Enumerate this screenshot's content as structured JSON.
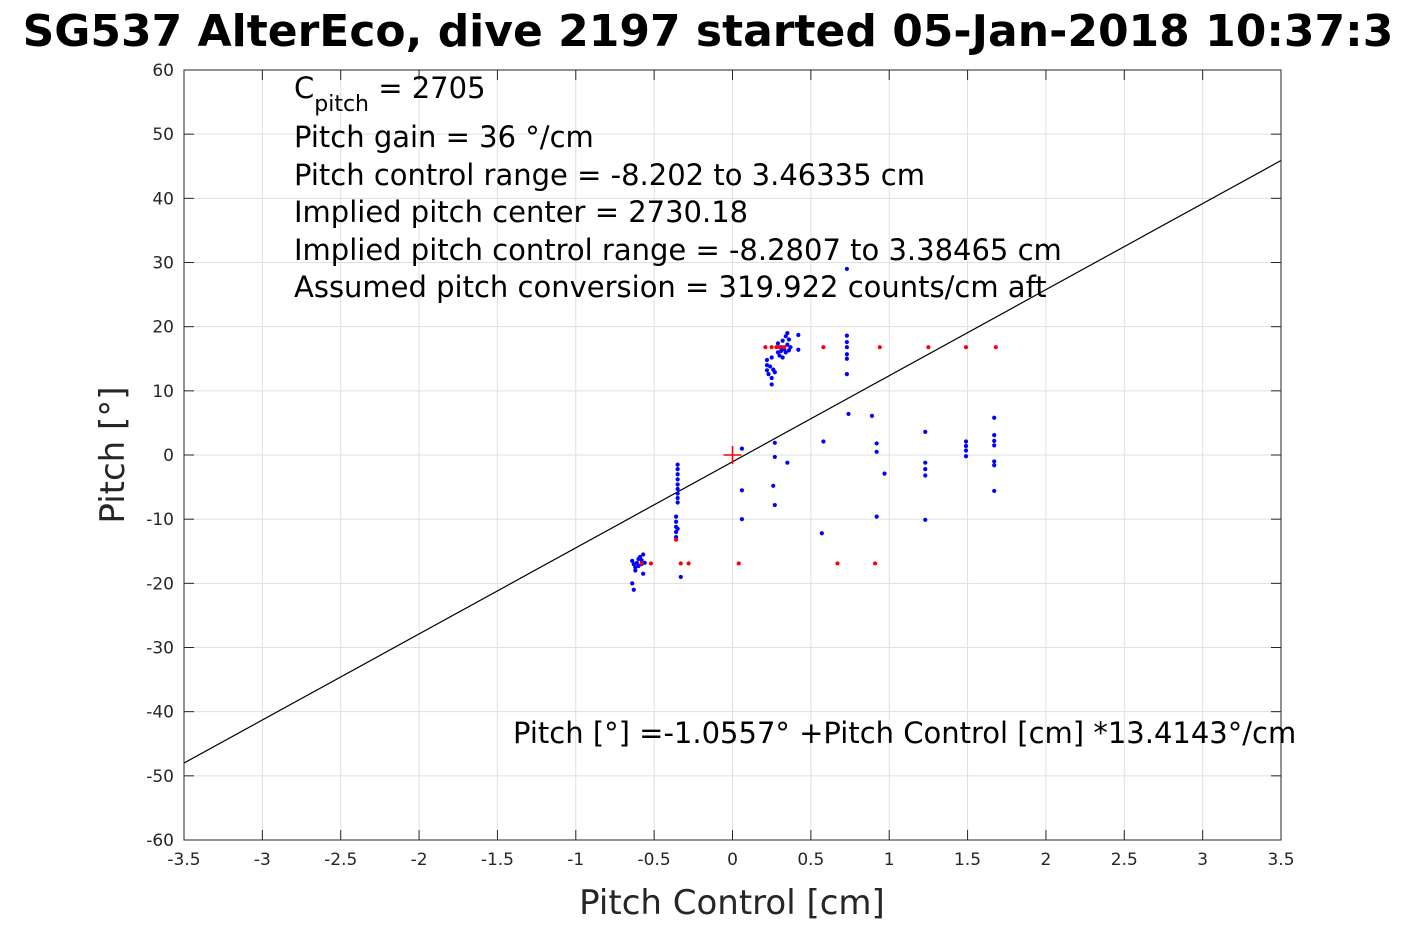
{
  "chart_data": {
    "type": "scatter",
    "title": "SG537 AlterEco, dive 2197 started 05-Jan-2018 10:37:3",
    "xlabel": "Pitch Control [cm]",
    "ylabel": "Pitch [°]",
    "xlim": [
      -3.5,
      3.5
    ],
    "ylim": [
      -60,
      60
    ],
    "xticks": [
      "-3.5",
      "-3",
      "-2.5",
      "-2",
      "-1.5",
      "-1",
      "-0.5",
      "0",
      "0.5",
      "1",
      "1.5",
      "2",
      "2.5",
      "3",
      "3.5"
    ],
    "yticks": [
      "60",
      "50",
      "40",
      "30",
      "20",
      "10",
      "0",
      "-10",
      "-20",
      "-30",
      "-40",
      "-50",
      "-60"
    ],
    "grid": true,
    "colors": {
      "observed": "#0000ff",
      "excluded": "#ff0000",
      "fit": "#000000",
      "center": "#ff0000"
    },
    "annotations": {
      "c_pitch_symbol": "C",
      "c_pitch_subscript": "pitch",
      "c_pitch_value": " = 2705",
      "pitch_gain": "Pitch gain = 36 °/cm",
      "control_range": "Pitch control range = -8.202 to 3.46335 cm",
      "implied_center": "Implied pitch center = 2730.18",
      "implied_range": "Implied pitch control range = -8.2807 to 3.38465 cm",
      "conversion": "Assumed pitch conversion = 319.922 counts/cm aft",
      "fit_equation": "Pitch [°] =-1.0557° +Pitch Control [cm] *13.4143°/cm"
    },
    "fit_line": {
      "intercept": -1.0557,
      "slope": 13.4143
    },
    "center_marker": {
      "x": 0,
      "y": 0
    },
    "series": [
      {
        "role": "observed",
        "points": [
          [
            -0.64,
            -16.5
          ],
          [
            -0.63,
            -17.0
          ],
          [
            -0.62,
            -17.5
          ],
          [
            -0.62,
            -18.0
          ],
          [
            -0.61,
            -16.8
          ],
          [
            -0.6,
            -16.2
          ],
          [
            -0.6,
            -17.3
          ],
          [
            -0.59,
            -15.9
          ],
          [
            -0.58,
            -16.4
          ],
          [
            -0.58,
            -17.0
          ],
          [
            -0.57,
            -18.5
          ],
          [
            -0.57,
            -15.5
          ],
          [
            -0.56,
            -16.8
          ],
          [
            -0.64,
            -20.0
          ],
          [
            -0.63,
            -21.0
          ],
          [
            -0.36,
            -9.6
          ],
          [
            -0.36,
            -10.4
          ],
          [
            -0.36,
            -11.2
          ],
          [
            -0.36,
            -12.0
          ],
          [
            -0.36,
            -12.8
          ],
          [
            -0.35,
            -11.5
          ],
          [
            -0.35,
            -1.5
          ],
          [
            -0.35,
            -2.2
          ],
          [
            -0.35,
            -3.0
          ],
          [
            -0.35,
            -3.8
          ],
          [
            -0.35,
            -4.6
          ],
          [
            -0.35,
            -5.3
          ],
          [
            -0.35,
            -6.0
          ],
          [
            -0.35,
            -6.7
          ],
          [
            -0.35,
            -7.4
          ],
          [
            -0.33,
            -19.0
          ],
          [
            0.06,
            1.0
          ],
          [
            0.06,
            -5.5
          ],
          [
            0.06,
            -10.0
          ],
          [
            0.26,
            -4.8
          ],
          [
            0.27,
            1.9
          ],
          [
            0.27,
            -0.3
          ],
          [
            0.27,
            -7.8
          ],
          [
            0.35,
            -1.2
          ],
          [
            0.22,
            14.8
          ],
          [
            0.22,
            14.0
          ],
          [
            0.22,
            13.2
          ],
          [
            0.23,
            12.6
          ],
          [
            0.24,
            13.8
          ],
          [
            0.25,
            12.0
          ],
          [
            0.25,
            11.0
          ],
          [
            0.26,
            13.3
          ],
          [
            0.27,
            12.9
          ],
          [
            0.25,
            15.2
          ],
          [
            0.29,
            16.0
          ],
          [
            0.29,
            17.4
          ],
          [
            0.3,
            15.5
          ],
          [
            0.31,
            16.8
          ],
          [
            0.31,
            16.2
          ],
          [
            0.32,
            17.8
          ],
          [
            0.32,
            15.2
          ],
          [
            0.33,
            16.5
          ],
          [
            0.34,
            18.5
          ],
          [
            0.34,
            16.0
          ],
          [
            0.35,
            19.0
          ],
          [
            0.35,
            17.2
          ],
          [
            0.36,
            16.3
          ],
          [
            0.36,
            18.0
          ],
          [
            0.37,
            16.8
          ],
          [
            0.42,
            18.7
          ],
          [
            0.42,
            16.4
          ],
          [
            0.58,
            2.1
          ],
          [
            0.57,
            -12.2
          ],
          [
            0.73,
            29.0
          ],
          [
            0.73,
            18.6
          ],
          [
            0.73,
            17.6
          ],
          [
            0.73,
            16.8
          ],
          [
            0.73,
            15.7
          ],
          [
            0.73,
            15.0
          ],
          [
            0.73,
            12.6
          ],
          [
            0.74,
            6.4
          ],
          [
            0.89,
            6.1
          ],
          [
            0.92,
            1.8
          ],
          [
            0.92,
            0.5
          ],
          [
            0.92,
            -9.6
          ],
          [
            0.97,
            -2.9
          ],
          [
            1.23,
            3.6
          ],
          [
            1.23,
            -1.2
          ],
          [
            1.23,
            -2.2
          ],
          [
            1.23,
            -3.2
          ],
          [
            1.23,
            -10.1
          ],
          [
            1.49,
            2.1
          ],
          [
            1.49,
            1.4
          ],
          [
            1.49,
            0.7
          ],
          [
            1.49,
            -0.2
          ],
          [
            1.67,
            5.8
          ],
          [
            1.67,
            3.1
          ],
          [
            1.67,
            2.2
          ],
          [
            1.67,
            1.5
          ],
          [
            1.67,
            -1.0
          ],
          [
            1.67,
            -1.6
          ],
          [
            1.67,
            -5.6
          ]
        ]
      },
      {
        "role": "excluded",
        "points": [
          [
            -0.58,
            -16.9
          ],
          [
            -0.52,
            -16.9
          ],
          [
            -0.36,
            -13.2
          ],
          [
            -0.33,
            -16.9
          ],
          [
            -0.28,
            -16.9
          ],
          [
            0.04,
            -16.9
          ],
          [
            0.67,
            -16.9
          ],
          [
            0.91,
            -16.9
          ],
          [
            0.21,
            16.8
          ],
          [
            0.25,
            16.8
          ],
          [
            0.28,
            16.8
          ],
          [
            0.3,
            16.8
          ],
          [
            0.33,
            16.8
          ],
          [
            0.58,
            16.8
          ],
          [
            0.94,
            16.8
          ],
          [
            1.25,
            16.8
          ],
          [
            1.49,
            16.8
          ],
          [
            1.68,
            16.8
          ]
        ]
      }
    ]
  }
}
